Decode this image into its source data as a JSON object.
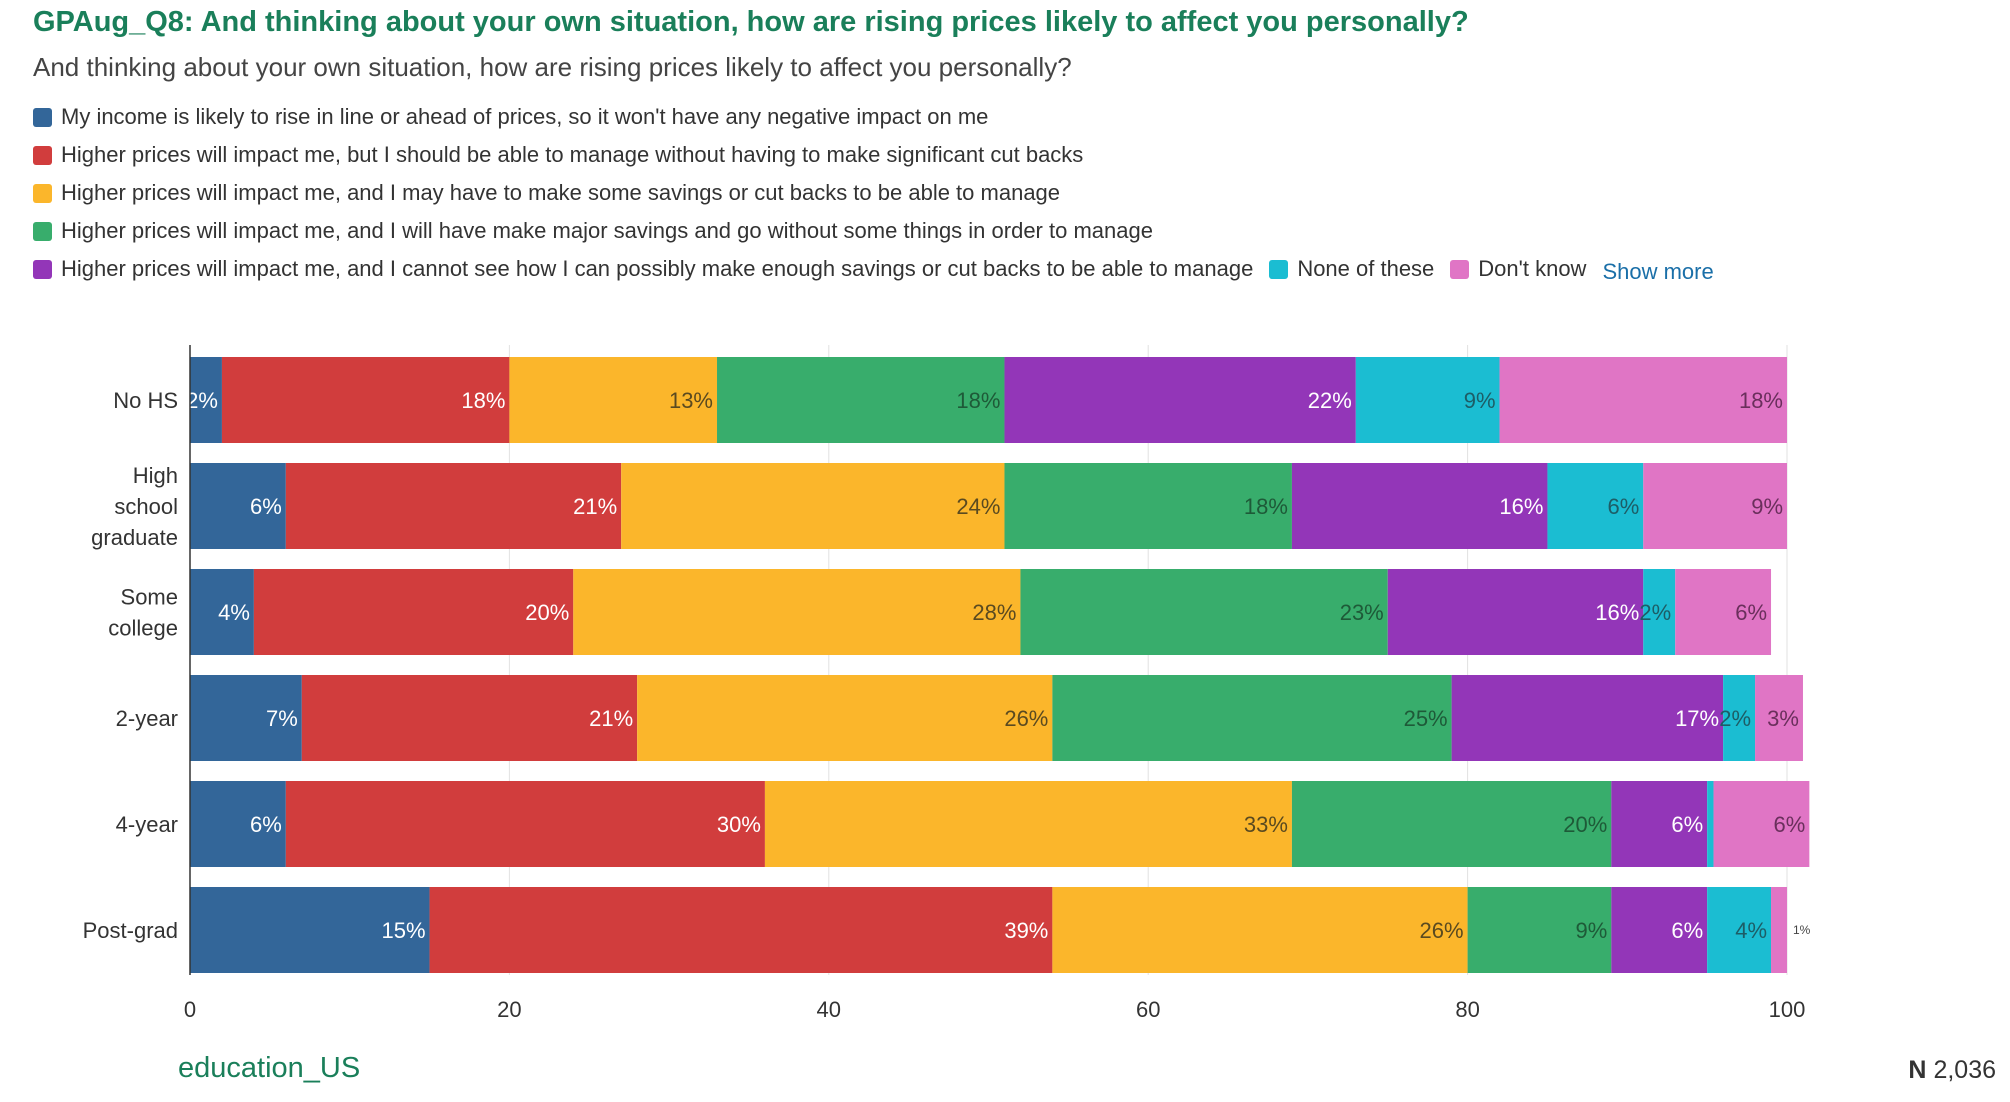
{
  "header": {
    "title": "GPAug_Q8: And thinking about your own situation, how are rising prices likely to affect you personally?",
    "subtitle": "And thinking about your own situation, how are rising prices likely to affect you personally?"
  },
  "legend": {
    "show_more_label": "Show more"
  },
  "footer": {
    "variable": "education_US",
    "n_label": "N",
    "n_value": "2,036"
  },
  "chart_data": {
    "type": "bar",
    "orientation": "horizontal",
    "stacked": true,
    "categories": [
      "No HS",
      "High school graduate",
      "Some college",
      "2-year",
      "4-year",
      "Post-grad"
    ],
    "xlim": [
      0,
      100
    ],
    "xticks": [
      0,
      20,
      40,
      60,
      80,
      100
    ],
    "grid": true,
    "legend_position": "top",
    "series": [
      {
        "name": "My income is likely to rise in line or ahead of prices, so it won't have any negative impact on me",
        "color": "#336699",
        "values": [
          2,
          6,
          4,
          7,
          6,
          15
        ]
      },
      {
        "name": "Higher prices will impact me, but I should be able to manage without having to make significant cut backs",
        "color": "#d13d3d",
        "values": [
          18,
          21,
          20,
          21,
          30,
          39
        ]
      },
      {
        "name": "Higher prices will impact me, and I may have to make some savings or cut backs to be able to manage",
        "color": "#fbb62b",
        "values": [
          13,
          24,
          28,
          26,
          33,
          26
        ]
      },
      {
        "name": "Higher prices will impact me, and I will have make major savings and go without some things in order to manage",
        "color": "#38ad6c",
        "values": [
          18,
          18,
          23,
          25,
          20,
          9
        ]
      },
      {
        "name": "Higher prices will impact me, and I cannot see how I can possibly make enough savings or cut backs to be able to manage",
        "color": "#9336b8",
        "values": [
          22,
          16,
          16,
          17,
          6,
          6
        ]
      },
      {
        "name": "None of these",
        "color": "#1bbdd2",
        "values": [
          9,
          6,
          2,
          2,
          0.4,
          4
        ]
      },
      {
        "name": "Don't know",
        "color": "#e075c5",
        "values": [
          18,
          9,
          6,
          3,
          6,
          1
        ]
      }
    ],
    "labels": [
      [
        "2%",
        "18%",
        "13%",
        "18%",
        "22%",
        "9%",
        "18%"
      ],
      [
        "6%",
        "21%",
        "24%",
        "18%",
        "16%",
        "6%",
        "9%"
      ],
      [
        "4%",
        "20%",
        "28%",
        "23%",
        "16%",
        "2%",
        "6%"
      ],
      [
        "7%",
        "21%",
        "26%",
        "25%",
        "17%",
        "2%",
        "3%"
      ],
      [
        "6%",
        "30%",
        "33%",
        "20%",
        "6%",
        "",
        "6%"
      ],
      [
        "15%",
        "39%",
        "26%",
        "9%",
        "6%",
        "4%",
        "1%"
      ]
    ]
  }
}
